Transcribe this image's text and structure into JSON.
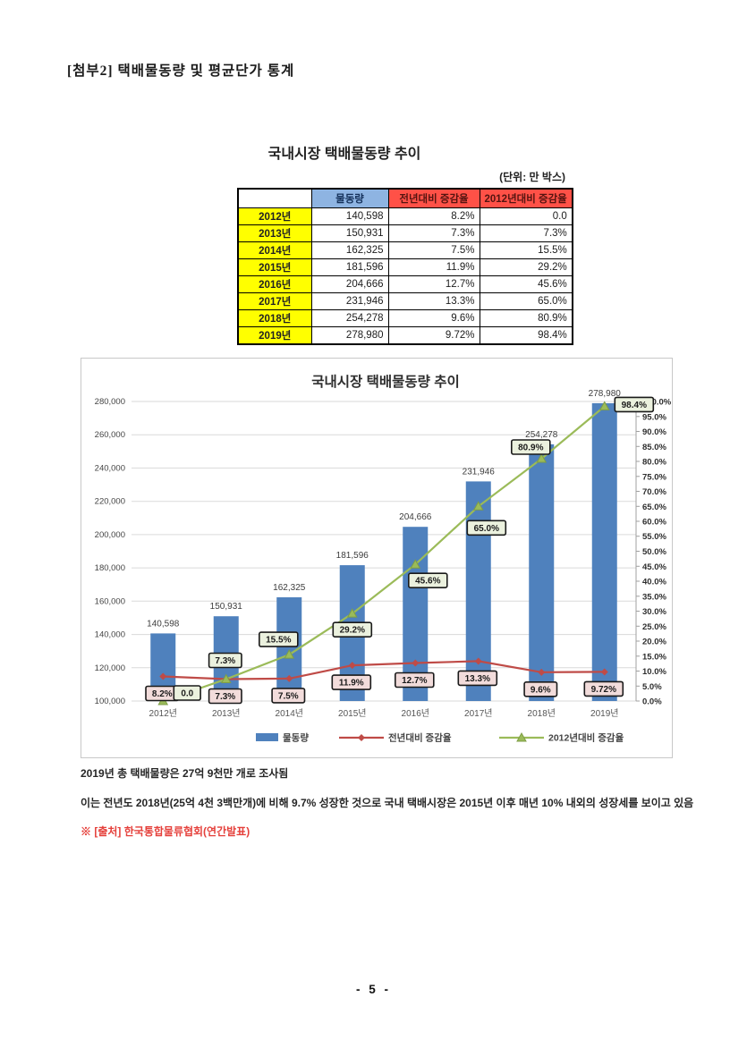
{
  "page": {
    "title": "[첨부2] 택배물동량 및 평균단가 통계",
    "page_number": "- 5 -"
  },
  "table": {
    "title": "국내시장 택배물동량 추이",
    "unit_note": "(단위: 만 박스)",
    "headers": [
      "",
      "물동량",
      "전년대비 증감율",
      "2012년대비 증감율"
    ],
    "rows": [
      {
        "year": "2012년",
        "volume": "140,598",
        "yoy": "8.2%",
        "vs2012": "0.0"
      },
      {
        "year": "2013년",
        "volume": "150,931",
        "yoy": "7.3%",
        "vs2012": "7.3%"
      },
      {
        "year": "2014년",
        "volume": "162,325",
        "yoy": "7.5%",
        "vs2012": "15.5%"
      },
      {
        "year": "2015년",
        "volume": "181,596",
        "yoy": "11.9%",
        "vs2012": "29.2%"
      },
      {
        "year": "2016년",
        "volume": "204,666",
        "yoy": "12.7%",
        "vs2012": "45.6%"
      },
      {
        "year": "2017년",
        "volume": "231,946",
        "yoy": "13.3%",
        "vs2012": "65.0%"
      },
      {
        "year": "2018년",
        "volume": "254,278",
        "yoy": "9.6%",
        "vs2012": "80.9%"
      },
      {
        "year": "2019년",
        "volume": "278,980",
        "yoy": "9.72%",
        "vs2012": "98.4%"
      }
    ]
  },
  "chart_data": {
    "type": "bar",
    "subtype": "combo-bar-line",
    "title": "국내시장 택배물동량 추이",
    "categories": [
      "2012년",
      "2013년",
      "2014년",
      "2015년",
      "2016년",
      "2017년",
      "2018년",
      "2019년"
    ],
    "series": [
      {
        "name": "물동량",
        "type": "bar",
        "axis": "left",
        "values": [
          140598,
          150931,
          162325,
          181596,
          204666,
          231946,
          254278,
          278980
        ],
        "labels": [
          "140,598",
          "150,931",
          "162,325",
          "181,596",
          "204,666",
          "231,946",
          "254,278",
          "278,980"
        ],
        "color": "#4f81bd"
      },
      {
        "name": "전년대비 증감율",
        "type": "line",
        "axis": "right",
        "marker": "diamond",
        "values": [
          8.2,
          7.3,
          7.5,
          11.9,
          12.7,
          13.3,
          9.6,
          9.72
        ],
        "labels": [
          "8.2%",
          "7.3%",
          "7.5%",
          "11.9%",
          "12.7%",
          "13.3%",
          "9.6%",
          "9.72%"
        ],
        "color": "#bf4b47",
        "label_bg": "#f2dcdb"
      },
      {
        "name": "2012년대비 증감율",
        "type": "line",
        "axis": "right",
        "marker": "triangle",
        "values": [
          0.0,
          7.3,
          15.5,
          29.2,
          45.6,
          65.0,
          80.9,
          98.4
        ],
        "labels": [
          "0.0",
          "7.3%",
          "15.5%",
          "29.2%",
          "45.6%",
          "65.0%",
          "80.9%",
          "98.4%"
        ],
        "color": "#9bbb59",
        "label_bg": "#ebf1de"
      }
    ],
    "left_axis": {
      "min": 100000,
      "max": 280000,
      "step": 20000,
      "tick_labels": [
        "100,000",
        "120,000",
        "140,000",
        "160,000",
        "180,000",
        "200,000",
        "220,000",
        "240,000",
        "260,000",
        "280,000"
      ]
    },
    "right_axis": {
      "min": 0,
      "max": 100,
      "step": 5,
      "tick_labels": [
        "0.0%",
        "5.0%",
        "10.0%",
        "15.0%",
        "20.0%",
        "25.0%",
        "30.0%",
        "35.0%",
        "40.0%",
        "45.0%",
        "50.0%",
        "55.0%",
        "60.0%",
        "65.0%",
        "70.0%",
        "75.0%",
        "80.0%",
        "85.0%",
        "90.0%",
        "95.0%",
        "100.0%"
      ]
    },
    "legend_position": "bottom",
    "grid": true
  },
  "notes": {
    "line1": "2019년 총 택배물량은 27억 9천만 개로 조사됨",
    "line2": "이는 전년도 2018년(25억 4천 3백만개)에 비해 9.7% 성장한 것으로 국내 택배시장은 2015년 이후 매년 10% 내외의 성장세를 보이고 있음",
    "source": "※ [출처] 한국통합물류협회(연간발표)"
  },
  "colors": {
    "bar_blue": "#4f81bd",
    "line_red": "#bf4b47",
    "line_green": "#9bbb59",
    "label_pink_bg": "#f2dcdb",
    "label_green_bg": "#ebf1de",
    "header_blue_bg": "#8eb4e2",
    "header_red_bg": "#ff5147",
    "year_yellow_bg": "#ffff00",
    "source_red": "#e5403b",
    "gridline": "#dadada"
  }
}
